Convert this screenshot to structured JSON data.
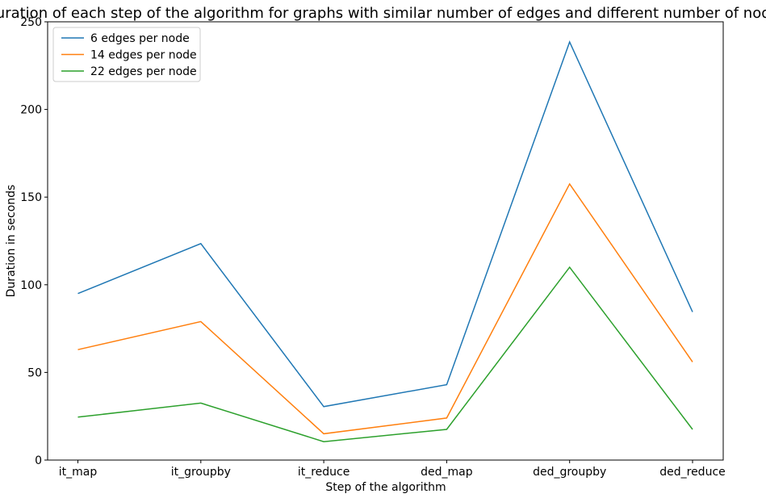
{
  "chart_data": {
    "type": "line",
    "title": "Duration of each step of the algorithm for graphs with similar number of edges and different number of nodes",
    "xlabel": "Step of the algorithm",
    "ylabel": "Duration in seconds",
    "categories": [
      "it_map",
      "it_groupby",
      "it_reduce",
      "ded_map",
      "ded_groupby",
      "ded_reduce"
    ],
    "ylim": [
      0,
      250
    ],
    "yticks": [
      "0",
      "50",
      "100",
      "150",
      "200",
      "250"
    ],
    "grid": false,
    "legend_position": "top-left",
    "series": [
      {
        "name": "6 edges per node",
        "color": "#1f77b4",
        "values": [
          95,
          123.5,
          30.5,
          43,
          238.5,
          84.5
        ]
      },
      {
        "name": "14 edges per node",
        "color": "#ff7f0e",
        "values": [
          63,
          79,
          15,
          24,
          157.5,
          56
        ]
      },
      {
        "name": "22 edges per node",
        "color": "#2ca02c",
        "values": [
          24.5,
          32.5,
          10.5,
          17.5,
          110,
          17.5
        ]
      }
    ]
  }
}
